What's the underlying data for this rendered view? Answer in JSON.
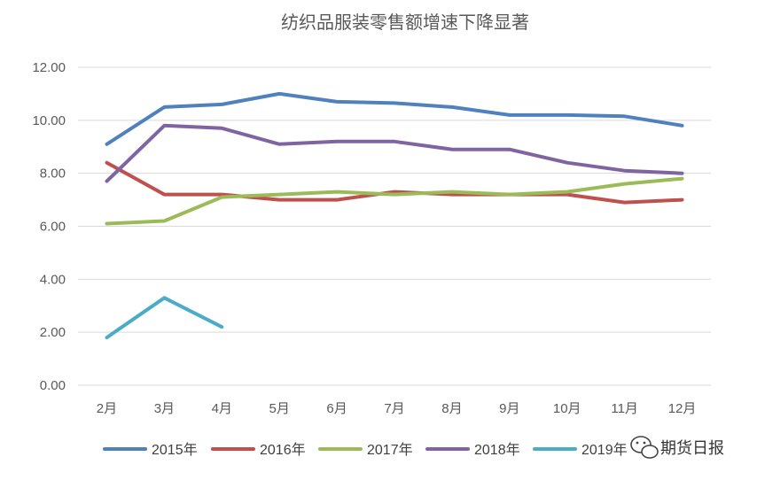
{
  "chart_data": {
    "type": "line",
    "title": "纺织品服装零售额增速下降显著",
    "categories": [
      "2月",
      "3月",
      "4月",
      "5月",
      "6月",
      "7月",
      "8月",
      "9月",
      "10月",
      "11月",
      "12月"
    ],
    "ylim": [
      0,
      12
    ],
    "yticks": [
      "0.00",
      "2.00",
      "4.00",
      "6.00",
      "8.00",
      "10.00",
      "12.00"
    ],
    "grid": true,
    "legend_position": "bottom",
    "series": [
      {
        "name": "2015年",
        "color": "#4f81bd",
        "values": [
          9.1,
          10.5,
          10.6,
          11.0,
          10.7,
          10.65,
          10.5,
          10.2,
          10.2,
          10.15,
          9.8
        ]
      },
      {
        "name": "2016年",
        "color": "#c0504d",
        "values": [
          8.4,
          7.2,
          7.2,
          7.0,
          7.0,
          7.3,
          7.2,
          7.2,
          7.2,
          6.9,
          7.0
        ]
      },
      {
        "name": "2017年",
        "color": "#9bbb59",
        "values": [
          6.1,
          6.2,
          7.1,
          7.2,
          7.3,
          7.2,
          7.3,
          7.2,
          7.3,
          7.6,
          7.8
        ]
      },
      {
        "name": "2018年",
        "color": "#8064a2",
        "values": [
          7.7,
          9.8,
          9.7,
          9.1,
          9.2,
          9.2,
          8.9,
          8.9,
          8.4,
          8.1,
          8.0
        ]
      },
      {
        "name": "2019年",
        "color": "#4bacc6",
        "values": [
          1.8,
          3.3,
          2.2,
          null,
          null,
          null,
          null,
          null,
          null,
          null,
          null
        ]
      }
    ]
  },
  "watermark": {
    "text": "期货日报",
    "icon": "wechat-icon"
  }
}
